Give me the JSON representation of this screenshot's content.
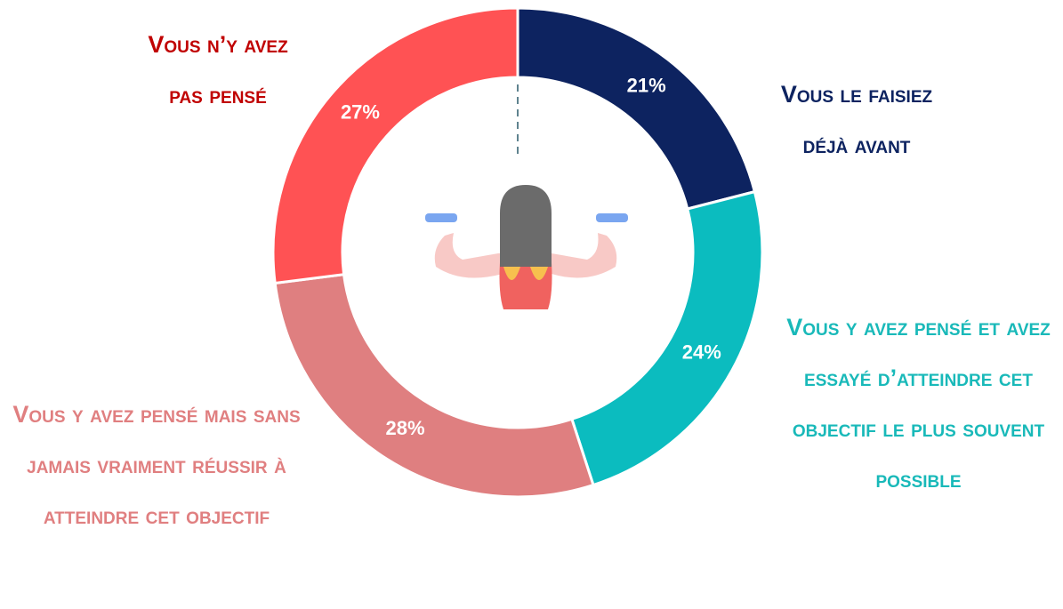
{
  "chart_data": {
    "type": "donut",
    "categories": [
      "Vous le faisiez déjà avant",
      "Vous y avez pensé et avez essayé d’atteindre cet objectif le plus souvent possible",
      "Vous y avez pensé mais sans jamais vraiment réussir à atteindre cet objectif",
      "Vous n’y avez pas pensé"
    ],
    "values": [
      21,
      24,
      28,
      27
    ],
    "value_labels": [
      "21%",
      "24%",
      "28%",
      "27%"
    ],
    "colors": [
      "#0d2360",
      "#0bbcbf",
      "#df7f80",
      "#ff5254"
    ],
    "label_colors": [
      "#0d2360",
      "#19b9b9",
      "#e07f80",
      "#c00000"
    ]
  }
}
